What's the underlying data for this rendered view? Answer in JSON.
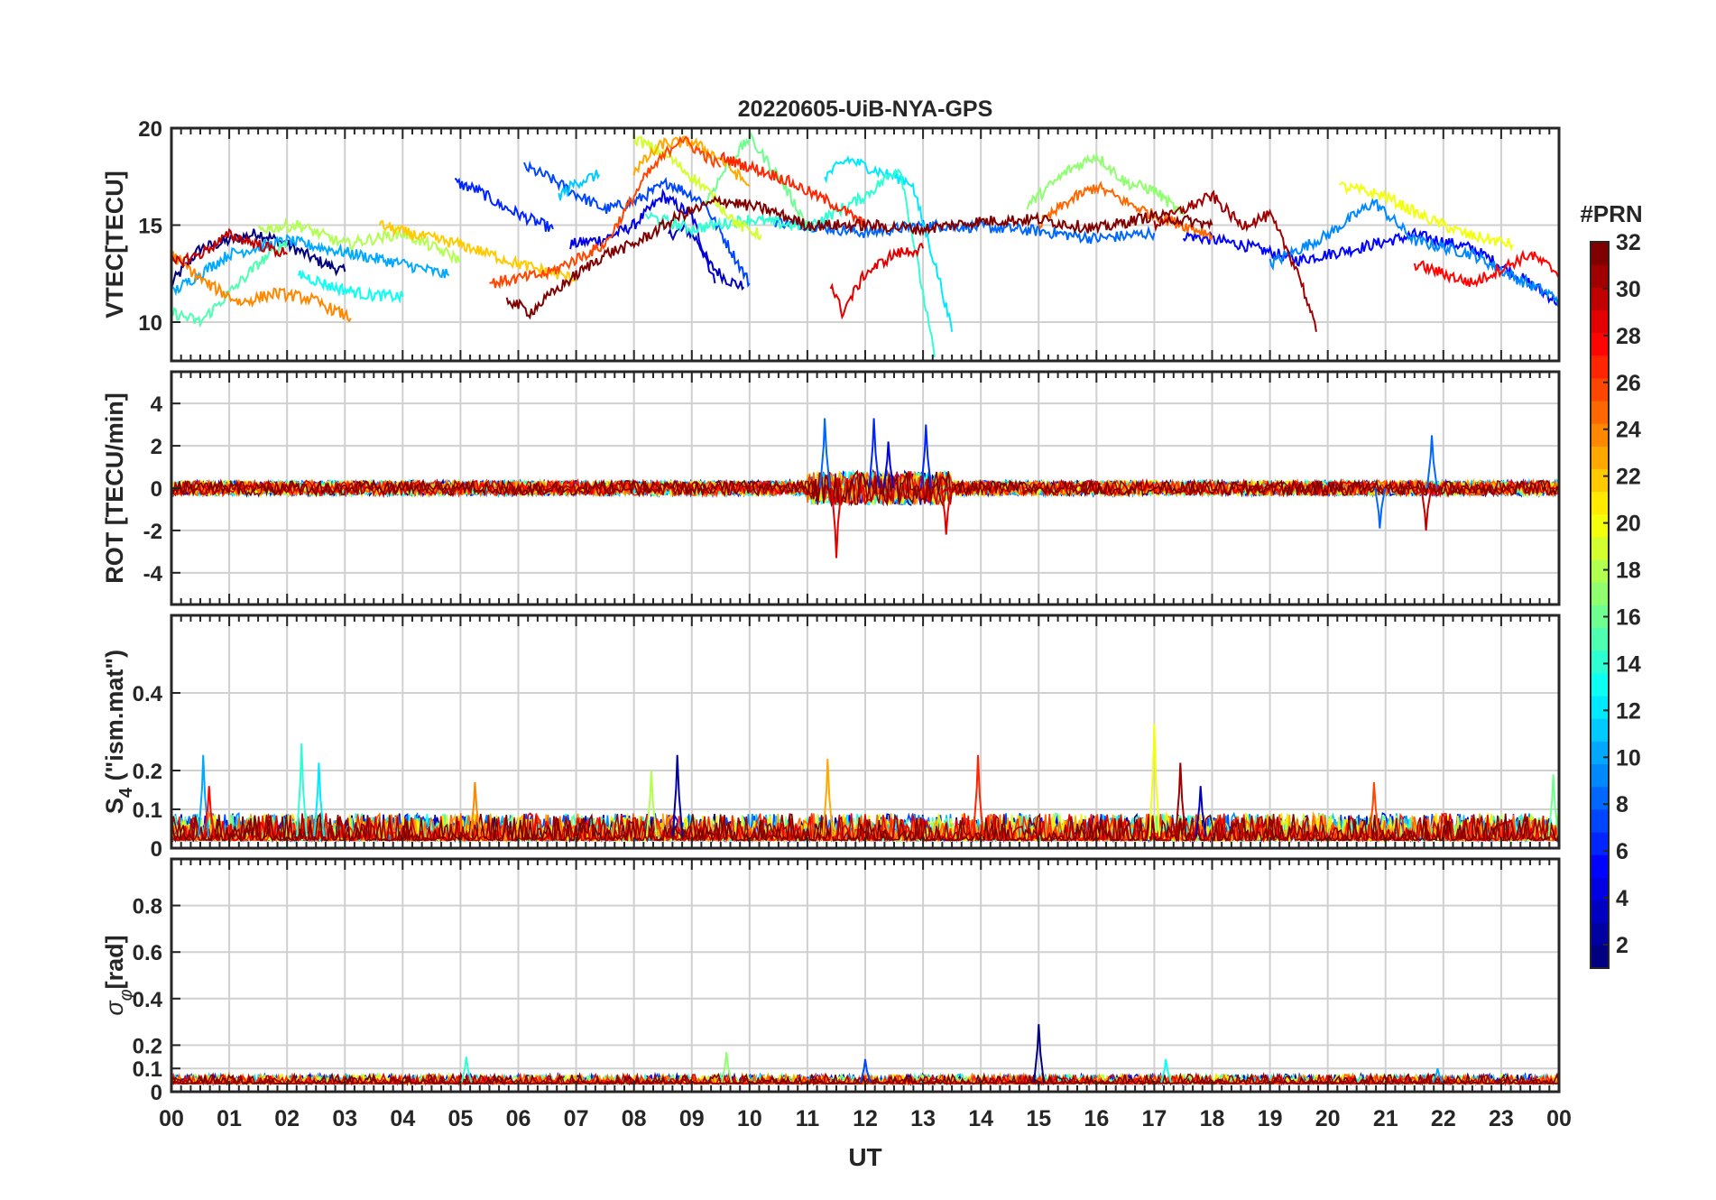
{
  "chart_data": {
    "type": "line",
    "title": "20220605-UiB-NYA-GPS",
    "xlabel": "UT",
    "x_ticks": [
      "00",
      "01",
      "02",
      "03",
      "04",
      "05",
      "06",
      "07",
      "08",
      "09",
      "10",
      "11",
      "12",
      "13",
      "14",
      "15",
      "16",
      "17",
      "18",
      "19",
      "20",
      "21",
      "22",
      "23",
      "00"
    ],
    "xlim": [
      0,
      24
    ],
    "grid": true,
    "colorbar": {
      "label": "#PRN",
      "colormap": "jet",
      "range": [
        1,
        32
      ],
      "ticks": [
        "2",
        "4",
        "6",
        "8",
        "10",
        "12",
        "14",
        "16",
        "18",
        "20",
        "22",
        "24",
        "26",
        "28",
        "30",
        "32"
      ]
    },
    "panels": [
      {
        "id": "vtec",
        "ylabel": "VTEC[TECU]",
        "ylim": [
          8,
          20
        ],
        "yticks": [
          10,
          15,
          20
        ],
        "series": [
          {
            "prn": 1,
            "x": [
              0,
              0.5,
              1,
              1.5,
              2,
              2.5,
              3
            ],
            "y": [
              12.0,
              13.8,
              14.2,
              14.6,
              14.0,
              13.2,
              12.6
            ]
          },
          {
            "prn": 3,
            "x": [
              8.6,
              8.9,
              9.1,
              9.3,
              9.6,
              9.9
            ],
            "y": [
              14.5,
              14.8,
              14.2,
              13.0,
              12.2,
              11.8
            ]
          },
          {
            "prn": 4,
            "x": [
              6.9,
              7.5,
              8.0,
              8.5,
              9.0,
              9.4
            ],
            "y": [
              14.0,
              14.3,
              15.0,
              16.5,
              15.5,
              12.0
            ]
          },
          {
            "prn": 5,
            "x": [
              17.5,
              18.5,
              19.5,
              20.5,
              21.5,
              22.5,
              23.5,
              24
            ],
            "y": [
              14.5,
              14.0,
              13.2,
              13.8,
              14.5,
              13.8,
              12.0,
              11.0
            ]
          },
          {
            "prn": 6,
            "x": [
              4.9,
              5.3,
              5.7,
              6.2,
              6.6
            ],
            "y": [
              17.2,
              16.8,
              16.0,
              15.3,
              14.8
            ]
          },
          {
            "prn": 7,
            "x": [
              6.1,
              6.5,
              7.0,
              7.5,
              8.0,
              8.6,
              9.2,
              10.0
            ],
            "y": [
              18.0,
              17.5,
              16.6,
              15.8,
              16.2,
              17.2,
              16.2,
              12.0
            ]
          },
          {
            "prn": 8,
            "x": [
              10.4,
              11.0,
              12.0,
              13.0,
              14.0,
              15.0,
              16.0,
              17.0
            ],
            "y": [
              15.2,
              15.0,
              14.6,
              15.0,
              14.9,
              14.7,
              14.3,
              14.6
            ]
          },
          {
            "prn": 9,
            "x": [
              19.0,
              20.0,
              20.8,
              21.5,
              22.5,
              23.3,
              24
            ],
            "y": [
              13.0,
              14.5,
              16.2,
              14.2,
              13.5,
              12.2,
              11.2
            ]
          },
          {
            "prn": 10,
            "x": [
              0,
              1,
              2,
              3,
              4,
              4.8
            ],
            "y": [
              11.5,
              13.5,
              14.2,
              13.6,
              13.0,
              12.4
            ]
          },
          {
            "prn": 11,
            "x": [
              6.7,
              7.0,
              7.4
            ],
            "y": [
              16.5,
              17.2,
              17.6
            ]
          },
          {
            "prn": 12,
            "x": [
              11.3,
              11.7,
              12.2,
              12.8,
              13.3,
              13.5
            ],
            "y": [
              17.5,
              18.4,
              17.8,
              17.2,
              12.0,
              9.5
            ]
          },
          {
            "prn": 13,
            "x": [
              2.2,
              2.8,
              3.4,
              4.0
            ],
            "y": [
              12.5,
              11.8,
              11.4,
              11.3
            ]
          },
          {
            "prn": 14,
            "x": [
              8.2,
              9.0,
              10.0,
              11.0,
              12.0,
              12.6,
              13.2
            ],
            "y": [
              15.5,
              14.8,
              15.3,
              14.9,
              16.5,
              18.0,
              8.2
            ]
          },
          {
            "prn": 15,
            "x": [
              0,
              0.5,
              1.0,
              1.5,
              2.0
            ],
            "y": [
              10.5,
              10.0,
              11.5,
              13.0,
              14.2
            ]
          },
          {
            "prn": 16,
            "x": [
              9.2,
              9.6,
              10.0,
              10.5,
              11.0
            ],
            "y": [
              16.0,
              18.0,
              19.5,
              17.5,
              15.0
            ]
          },
          {
            "prn": 17,
            "x": [
              14.8,
              15.5,
              16.0,
              16.5,
              17.0,
              17.5
            ],
            "y": [
              16.0,
              17.8,
              18.6,
              17.2,
              16.8,
              15.5
            ]
          },
          {
            "prn": 18,
            "x": [
              1.5,
              2.2,
              3.0,
              4.0,
              5.0
            ],
            "y": [
              14.8,
              15.0,
              14.0,
              14.6,
              13.2
            ]
          },
          {
            "prn": 19,
            "x": [
              8.0,
              8.6,
              9.2,
              9.8,
              10.2
            ],
            "y": [
              19.5,
              18.5,
              17.0,
              15.0,
              14.5
            ]
          },
          {
            "prn": 20,
            "x": [
              20.2,
              21.0,
              21.6,
              22.4,
              23.2
            ],
            "y": [
              17.0,
              16.5,
              15.5,
              14.5,
              14.0
            ]
          },
          {
            "prn": 22,
            "x": [
              3.6,
              4.2,
              5.0,
              6.0,
              7.0
            ],
            "y": [
              15.0,
              14.5,
              14.0,
              13.0,
              12.2
            ]
          },
          {
            "prn": 23,
            "x": [
              8.0,
              8.5,
              9.0,
              9.5,
              10.0
            ],
            "y": [
              17.8,
              19.2,
              19.3,
              18.4,
              17.0
            ]
          },
          {
            "prn": 24,
            "x": [
              0,
              0.6,
              1.2,
              1.8,
              2.4,
              3.1
            ],
            "y": [
              13.5,
              12.0,
              11.0,
              11.5,
              11.2,
              10.2
            ]
          },
          {
            "prn": 25,
            "x": [
              15.0,
              15.5,
              16.0,
              16.5,
              17.0,
              17.5,
              18.0
            ],
            "y": [
              15.0,
              16.2,
              17.0,
              16.2,
              15.5,
              15.0,
              14.5
            ]
          },
          {
            "prn": 26,
            "x": [
              5.5,
              6.5,
              7.5,
              8.2,
              8.8,
              9.5
            ],
            "y": [
              12.0,
              12.5,
              14.0,
              17.5,
              19.5,
              18.0
            ]
          },
          {
            "prn": 27,
            "x": [
              9.5,
              10.5,
              11.5,
              12.0
            ],
            "y": [
              18.5,
              17.5,
              16.0,
              15.0
            ]
          },
          {
            "prn": 28,
            "x": [
              21.5,
              22.5,
              23.5,
              24
            ],
            "y": [
              13.0,
              12.0,
              13.5,
              12.5
            ]
          },
          {
            "prn": 29,
            "x": [
              11.4,
              11.6,
              12.0,
              12.5,
              13.0
            ],
            "y": [
              12.0,
              10.5,
              12.5,
              13.5,
              13.8
            ]
          },
          {
            "prn": 30,
            "x": [
              0,
              0.5,
              1,
              1.5,
              2.0
            ],
            "y": [
              13.0,
              13.5,
              14.5,
              14.0,
              13.5
            ]
          },
          {
            "prn": 31,
            "x": [
              17.0,
              17.5,
              18.0,
              18.5,
              19.0,
              19.5,
              19.8
            ],
            "y": [
              15.0,
              15.8,
              16.5,
              15.0,
              15.5,
              12.5,
              9.5
            ]
          },
          {
            "prn": 32,
            "x": [
              5.8,
              6.2,
              6.8,
              7.5,
              8.0,
              8.8,
              9.5,
              10.3,
              11.0,
              12.0,
              13.0,
              14.0,
              15.0,
              16.0,
              17.0,
              18.0
            ],
            "y": [
              11.2,
              10.5,
              12.0,
              13.5,
              14.0,
              15.5,
              16.3,
              15.8,
              15.0,
              15.0,
              14.8,
              15.2,
              15.3,
              14.8,
              15.5,
              15.0
            ]
          }
        ]
      },
      {
        "id": "rot",
        "ylabel": "ROT [TECU/min]",
        "ylim": [
          -5.5,
          5.5
        ],
        "yticks": [
          -4,
          -2,
          0,
          2,
          4
        ],
        "spikes": [
          {
            "prn": 8,
            "x": 11.3,
            "y": 3.3
          },
          {
            "prn": 29,
            "x": 11.5,
            "y": -3.3
          },
          {
            "prn": 6,
            "x": 12.15,
            "y": 3.3
          },
          {
            "prn": 4,
            "x": 12.4,
            "y": 2.2
          },
          {
            "prn": 6,
            "x": 13.05,
            "y": 3.0
          },
          {
            "prn": 29,
            "x": 13.4,
            "y": -2.2
          },
          {
            "prn": 8,
            "x": 21.8,
            "y": 2.5
          },
          {
            "prn": 30,
            "x": 21.7,
            "y": -2.0
          },
          {
            "prn": 8,
            "x": 20.9,
            "y": -1.9
          }
        ]
      },
      {
        "id": "s4",
        "ylabel": "S4 (\"ism.mat\")",
        "ylim": [
          0,
          0.6
        ],
        "yticks": [
          0,
          0.1,
          0.2,
          0.4
        ],
        "spikes": [
          {
            "prn": 10,
            "x": 0.55,
            "y": 0.24
          },
          {
            "prn": 28,
            "x": 0.65,
            "y": 0.16
          },
          {
            "prn": 14,
            "x": 2.25,
            "y": 0.27
          },
          {
            "prn": 12,
            "x": 2.55,
            "y": 0.22
          },
          {
            "prn": 24,
            "x": 5.25,
            "y": 0.17
          },
          {
            "prn": 2,
            "x": 8.75,
            "y": 0.24
          },
          {
            "prn": 18,
            "x": 8.3,
            "y": 0.2
          },
          {
            "prn": 23,
            "x": 11.35,
            "y": 0.23
          },
          {
            "prn": 27,
            "x": 13.95,
            "y": 0.24
          },
          {
            "prn": 20,
            "x": 17.0,
            "y": 0.32
          },
          {
            "prn": 31,
            "x": 17.45,
            "y": 0.22
          },
          {
            "prn": 3,
            "x": 17.8,
            "y": 0.16
          },
          {
            "prn": 26,
            "x": 20.8,
            "y": 0.17
          },
          {
            "prn": 16,
            "x": 23.9,
            "y": 0.19
          }
        ]
      },
      {
        "id": "sigma_phi",
        "ylabel": "σφ[rad]",
        "ylim": [
          0,
          1.0
        ],
        "yticks": [
          0,
          0.1,
          0.2,
          0.4,
          0.6,
          0.8
        ],
        "spikes": [
          {
            "prn": 1,
            "x": 15.0,
            "y": 0.29
          },
          {
            "prn": 14,
            "x": 5.1,
            "y": 0.15
          },
          {
            "prn": 17,
            "x": 9.6,
            "y": 0.17
          },
          {
            "prn": 7,
            "x": 12.0,
            "y": 0.14
          },
          {
            "prn": 13,
            "x": 17.2,
            "y": 0.14
          },
          {
            "prn": 10,
            "x": 21.9,
            "y": 0.1
          }
        ]
      }
    ]
  }
}
